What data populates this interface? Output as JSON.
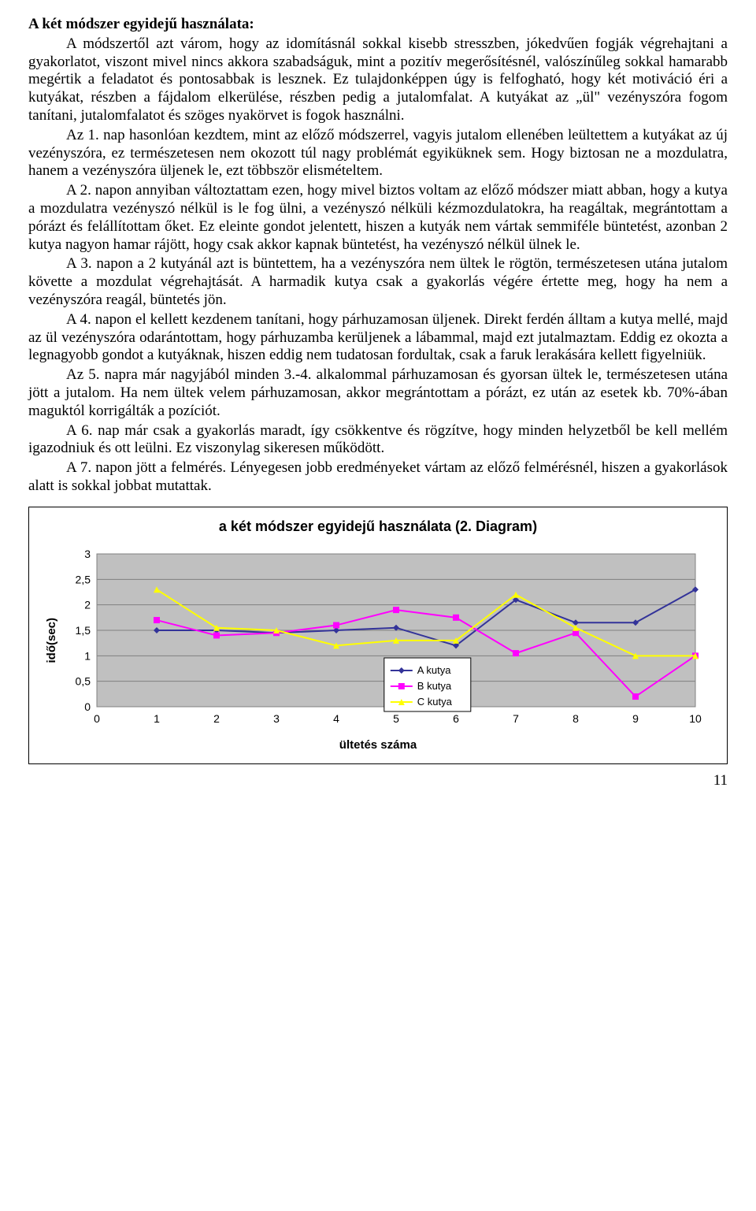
{
  "heading": "A két módszer egyidejű használata:",
  "paragraphs": [
    "A módszertől azt várom, hogy az idomításnál sokkal kisebb stresszben, jókedvűen fogják végrehajtani a gyakorlatot, viszont mivel nincs akkora szabadságuk, mint a pozitív megerősítésnél, valószínűleg sokkal hamarabb megértik a feladatot és pontosabbak is lesznek. Ez tulajdonképpen úgy is felfogható, hogy két motiváció éri a kutyákat, részben a fájdalom elkerülése, részben pedig a jutalomfalat. A kutyákat az „ül\" vezényszóra fogom tanítani, jutalomfalatot és szöges nyakörvet is fogok használni.",
    "Az 1. nap hasonlóan kezdtem, mint az előző módszerrel, vagyis jutalom ellenében leültettem a kutyákat az új vezényszóra, ez természetesen nem okozott túl nagy problémát egyiküknek sem. Hogy biztosan ne a mozdulatra, hanem a vezényszóra üljenek le, ezt többször elismételtem.",
    "A 2. napon annyiban változtattam ezen, hogy mivel biztos voltam az előző módszer miatt abban, hogy a kutya a mozdulatra vezényszó nélkül is le fog ülni, a vezényszó nélküli kézmozdulatokra, ha reagáltak, megrántottam a pórázt és felállítottam őket. Ez eleinte gondot jelentett, hiszen a kutyák nem vártak semmiféle büntetést, azonban 2 kutya nagyon hamar rájött, hogy csak akkor kapnak büntetést, ha vezényszó nélkül ülnek le.",
    "A 3. napon a 2 kutyánál azt is büntettem, ha a vezényszóra nem ültek le rögtön, természetesen utána jutalom követte a mozdulat végrehajtását. A harmadik kutya csak a gyakorlás végére értette meg, hogy ha nem a vezényszóra reagál, büntetés jön.",
    "A 4. napon el kellett kezdenem tanítani, hogy párhuzamosan üljenek. Direkt ferdén álltam a kutya mellé, majd az ül vezényszóra odarántottam, hogy párhuzamba kerüljenek a lábammal, majd ezt jutalmaztam. Eddig ez okozta a legnagyobb gondot a kutyáknak, hiszen eddig nem tudatosan fordultak, csak a faruk lerakására kellett figyelniük.",
    "Az 5. napra már nagyjából minden 3.-4. alkalommal párhuzamosan és gyorsan ültek le, természetesen utána jött a jutalom. Ha nem ültek velem párhuzamosan, akkor megrántottam a pórázt, ez után az esetek kb. 70%-ában maguktól korrigálták a pozíciót.",
    "A 6. nap már csak a gyakorlás maradt, így csökkentve és rögzítve, hogy minden helyzetből be kell mellém igazodniuk és ott leülni. Ez viszonylag sikeresen működött.",
    "A 7. napon jött a felmérés. Lényegesen jobb eredményeket vártam az előző felmérésnél, hiszen a gyakorlások alatt is sokkal jobbat mutattak."
  ],
  "chart": {
    "type": "line",
    "title": "a két módszer egyidejű használata (2. Diagram)",
    "xlabel": "ültetés száma",
    "ylabel": "idő(sec)",
    "xlim": [
      0,
      10
    ],
    "ylim": [
      0,
      3
    ],
    "xticks": [
      0,
      1,
      2,
      3,
      4,
      5,
      6,
      7,
      8,
      9,
      10
    ],
    "yticks": [
      0,
      0.5,
      1,
      1.5,
      2,
      2.5,
      3
    ],
    "ytick_labels": [
      "0",
      "0,5",
      "1",
      "1,5",
      "2",
      "2,5",
      "3"
    ],
    "grid_color": "#808080",
    "plot_bg": "#c0c0c0",
    "outer_bg": "#ffffff",
    "series": [
      {
        "name": "A kutya",
        "color": "#333399",
        "marker": "diamond",
        "x": [
          1,
          2,
          3,
          4,
          5,
          6,
          7,
          8,
          9,
          10
        ],
        "y": [
          1.5,
          1.5,
          1.45,
          1.5,
          1.55,
          1.2,
          2.1,
          1.65,
          1.65,
          2.3
        ]
      },
      {
        "name": "B kutya",
        "color": "#ff00ff",
        "marker": "square",
        "x": [
          1,
          2,
          3,
          4,
          5,
          6,
          7,
          8,
          9,
          10
        ],
        "y": [
          1.7,
          1.4,
          1.45,
          1.6,
          1.9,
          1.75,
          1.05,
          1.45,
          0.2,
          1.0
        ]
      },
      {
        "name": "C kutya",
        "color": "#ffff00",
        "marker": "triangle",
        "x": [
          1,
          2,
          3,
          4,
          5,
          6,
          7,
          8,
          9,
          10
        ],
        "y": [
          2.3,
          1.55,
          1.5,
          1.2,
          1.3,
          1.3,
          2.2,
          1.55,
          1.0,
          1.0
        ]
      }
    ],
    "line_width": 2,
    "marker_size": 8,
    "legend_bg": "#ffffff",
    "legend_border": "#000000",
    "title_fontsize": 18,
    "label_fontsize": 15,
    "tick_fontsize": 14
  },
  "page_number": "11"
}
